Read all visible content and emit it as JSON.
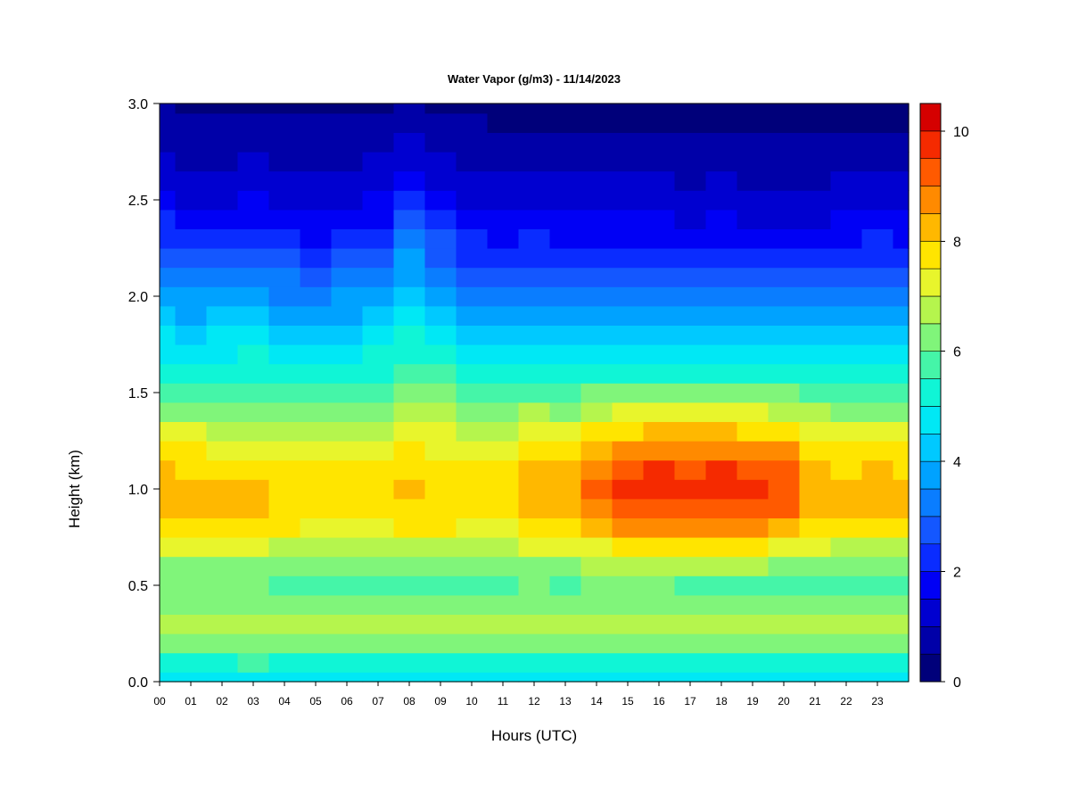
{
  "chart_data": {
    "type": "heatmap",
    "title": "Water Vapor (g/m3) - 11/14/2023",
    "xlabel": "Hours (UTC)",
    "ylabel": "Height (km)",
    "x_ticks": [
      "00",
      "01",
      "02",
      "03",
      "04",
      "05",
      "06",
      "07",
      "08",
      "09",
      "10",
      "11",
      "12",
      "13",
      "14",
      "15",
      "16",
      "17",
      "18",
      "19",
      "20",
      "21",
      "22",
      "23"
    ],
    "y_ticks": [
      "0.0",
      "0.5",
      "1.0",
      "1.5",
      "2.0",
      "2.5",
      "3.0"
    ],
    "colorbar_ticks": [
      "0",
      "2",
      "4",
      "6",
      "8",
      "10"
    ],
    "xlim": [
      0,
      24
    ],
    "ylim": [
      0,
      3
    ],
    "zlim": [
      0,
      10.5
    ],
    "colorbar_levels": [
      0,
      0.5,
      1,
      1.5,
      2,
      2.5,
      3,
      3.5,
      4,
      4.5,
      5,
      5.5,
      6,
      6.5,
      7,
      7.5,
      8,
      8.5,
      9,
      9.5,
      10,
      10.5
    ],
    "colormap": [
      "#00007a",
      "#0000a8",
      "#0000d0",
      "#0000f5",
      "#0a2cff",
      "#1457ff",
      "#0a7dff",
      "#00a2ff",
      "#00c9ff",
      "#00e8f5",
      "#10f5d6",
      "#45f5a8",
      "#80f57a",
      "#b5f54d",
      "#e8f52c",
      "#ffe500",
      "#ffb800",
      "#ff8a00",
      "#ff5a00",
      "#f52a00",
      "#d50000",
      "#a80000",
      "#780000"
    ],
    "heights_km": [
      0.0,
      0.1,
      0.2,
      0.3,
      0.4,
      0.5,
      0.6,
      0.7,
      0.8,
      0.9,
      1.0,
      1.1,
      1.2,
      1.3,
      1.4,
      1.5,
      1.6,
      1.7,
      1.8,
      1.9,
      2.0,
      2.1,
      2.2,
      2.3,
      2.4,
      2.5,
      2.6,
      2.7,
      2.8,
      2.9,
      3.0
    ],
    "hours_utc": [
      0,
      1,
      2,
      3,
      4,
      5,
      6,
      7,
      8,
      9,
      10,
      11,
      12,
      13,
      14,
      15,
      16,
      17,
      18,
      19,
      20,
      21,
      22,
      23,
      24
    ],
    "values_g_m3": [
      [
        4.8,
        5.4,
        6.2,
        6.8,
        6.3,
        6.1,
        6.4,
        7.1,
        7.7,
        8.1,
        8.3,
        8.0,
        7.6,
        7.0,
        6.4,
        5.9,
        5.3,
        4.9,
        4.5,
        4.1,
        3.7,
        3.3,
        2.8,
        2.4,
        2.0,
        1.6,
        1.3,
        1.0,
        0.8,
        0.6,
        0.5
      ],
      [
        4.8,
        5.4,
        6.2,
        6.7,
        6.2,
        6.0,
        6.3,
        7.0,
        7.6,
        8.0,
        8.1,
        7.9,
        7.5,
        7.0,
        6.3,
        5.8,
        5.2,
        4.8,
        4.3,
        3.9,
        3.5,
        3.0,
        2.5,
        2.1,
        1.7,
        1.4,
        1.1,
        0.9,
        0.7,
        0.5,
        0.4
      ],
      [
        4.7,
        5.4,
        6.2,
        6.8,
        6.2,
        6.0,
        6.3,
        7.0,
        7.6,
        8.0,
        8.0,
        7.8,
        7.4,
        6.9,
        6.3,
        5.8,
        5.3,
        4.9,
        4.5,
        4.0,
        3.5,
        3.0,
        2.5,
        2.1,
        1.7,
        1.4,
        1.1,
        0.9,
        0.7,
        0.5,
        0.4
      ],
      [
        4.7,
        5.5,
        6.2,
        6.7,
        6.2,
        6.0,
        6.2,
        7.0,
        7.6,
        8.0,
        8.1,
        7.8,
        7.4,
        6.9,
        6.4,
        5.9,
        5.4,
        5.0,
        4.6,
        4.1,
        3.7,
        3.2,
        2.7,
        2.3,
        1.9,
        1.6,
        1.3,
        1.0,
        0.8,
        0.6,
        0.4
      ],
      [
        4.7,
        5.4,
        6.1,
        6.6,
        6.1,
        5.9,
        6.2,
        6.9,
        7.5,
        7.9,
        7.9,
        7.7,
        7.3,
        6.8,
        6.2,
        5.7,
        5.2,
        4.8,
        4.3,
        3.9,
        3.4,
        3.0,
        2.5,
        2.1,
        1.7,
        1.4,
        1.1,
        0.9,
        0.7,
        0.5,
        0.4
      ],
      [
        4.6,
        5.3,
        6.0,
        6.5,
        6.0,
        5.8,
        6.1,
        6.8,
        7.4,
        7.7,
        7.8,
        7.6,
        7.2,
        6.7,
        6.1,
        5.6,
        5.1,
        4.7,
        4.3,
        3.8,
        3.3,
        2.8,
        2.3,
        1.9,
        1.6,
        1.3,
        1.0,
        0.8,
        0.6,
        0.5,
        0.4
      ],
      [
        4.6,
        5.3,
        6.0,
        6.5,
        6.0,
        5.8,
        6.1,
        6.8,
        7.4,
        7.7,
        7.8,
        7.6,
        7.2,
        6.7,
        6.2,
        5.7,
        5.2,
        4.8,
        4.4,
        3.9,
        3.5,
        3.0,
        2.5,
        2.0,
        1.7,
        1.4,
        1.1,
        0.9,
        0.7,
        0.5,
        0.4
      ],
      [
        4.7,
        5.3,
        6.0,
        6.5,
        6.0,
        5.8,
        6.1,
        6.8,
        7.4,
        7.8,
        7.9,
        7.7,
        7.3,
        6.8,
        6.3,
        5.9,
        5.4,
        5.0,
        4.6,
        4.2,
        3.7,
        3.2,
        2.7,
        2.3,
        1.9,
        1.6,
        1.3,
        1.0,
        0.8,
        0.6,
        0.4
      ],
      [
        4.7,
        5.3,
        6.1,
        6.6,
        6.1,
        5.9,
        6.2,
        6.9,
        7.5,
        7.9,
        8.0,
        7.8,
        7.5,
        7.1,
        6.6,
        6.2,
        5.8,
        5.4,
        5.0,
        4.7,
        4.3,
        3.9,
        3.5,
        3.1,
        2.6,
        2.1,
        1.7,
        1.3,
        1.0,
        0.7,
        0.5
      ],
      [
        4.7,
        5.3,
        6.1,
        6.6,
        6.1,
        5.9,
        6.2,
        6.9,
        7.5,
        7.8,
        7.9,
        7.7,
        7.4,
        7.0,
        6.5,
        6.0,
        5.5,
        5.1,
        4.7,
        4.3,
        3.9,
        3.4,
        2.9,
        2.5,
        2.0,
        1.7,
        1.3,
        1.0,
        0.8,
        0.6,
        0.4
      ],
      [
        4.6,
        5.3,
        6.0,
        6.5,
        6.0,
        5.8,
        6.1,
        6.8,
        7.4,
        7.7,
        7.8,
        7.6,
        7.2,
        6.7,
        6.2,
        5.7,
        5.2,
        4.8,
        4.3,
        3.9,
        3.4,
        2.9,
        2.4,
        2.0,
        1.6,
        1.3,
        1.0,
        0.8,
        0.6,
        0.5,
        0.3
      ],
      [
        4.6,
        5.3,
        6.0,
        6.5,
        6.0,
        5.8,
        6.1,
        6.8,
        7.4,
        7.7,
        7.8,
        7.6,
        7.2,
        6.7,
        6.1,
        5.6,
        5.1,
        4.7,
        4.3,
        3.8,
        3.3,
        2.8,
        2.3,
        1.9,
        1.5,
        1.2,
        1.0,
        0.8,
        0.6,
        0.4,
        0.3
      ],
      [
        4.7,
        5.4,
        6.1,
        6.7,
        6.2,
        6.0,
        6.4,
        7.2,
        7.9,
        8.3,
        8.4,
        8.2,
        7.8,
        7.2,
        6.5,
        5.9,
        5.3,
        4.8,
        4.3,
        3.9,
        3.4,
        2.9,
        2.4,
        2.0,
        1.6,
        1.3,
        1.0,
        0.8,
        0.6,
        0.4,
        0.3
      ],
      [
        4.7,
        5.4,
        6.1,
        6.6,
        6.1,
        5.9,
        6.3,
        7.1,
        7.8,
        8.2,
        8.3,
        8.1,
        7.7,
        7.1,
        6.4,
        5.8,
        5.2,
        4.7,
        4.3,
        3.8,
        3.3,
        2.8,
        2.3,
        1.9,
        1.5,
        1.2,
        1.0,
        0.8,
        0.6,
        0.4,
        0.3
      ],
      [
        4.7,
        5.4,
        6.1,
        6.7,
        6.2,
        6.0,
        6.5,
        7.4,
        8.2,
        8.8,
        9.0,
        8.8,
        8.3,
        7.6,
        6.8,
        6.0,
        5.3,
        4.8,
        4.3,
        3.8,
        3.3,
        2.8,
        2.3,
        1.9,
        1.5,
        1.2,
        1.0,
        0.8,
        0.6,
        0.4,
        0.3
      ],
      [
        4.7,
        5.4,
        6.1,
        6.7,
        6.2,
        6.0,
        6.6,
        7.6,
        8.5,
        9.2,
        9.5,
        9.3,
        8.7,
        7.9,
        7.0,
        6.1,
        5.4,
        4.8,
        4.3,
        3.8,
        3.3,
        2.8,
        2.3,
        1.9,
        1.5,
        1.2,
        1.0,
        0.8,
        0.6,
        0.4,
        0.3
      ],
      [
        4.7,
        5.4,
        6.2,
        6.7,
        6.2,
        6.0,
        6.6,
        7.7,
        8.7,
        9.4,
        9.7,
        9.5,
        8.9,
        8.1,
        7.1,
        6.2,
        5.4,
        4.8,
        4.3,
        3.8,
        3.3,
        2.8,
        2.3,
        1.9,
        1.5,
        1.2,
        1.0,
        0.8,
        0.6,
        0.4,
        0.3
      ],
      [
        4.6,
        5.3,
        6.1,
        6.6,
        6.1,
        5.9,
        6.5,
        7.6,
        8.6,
        9.3,
        9.6,
        9.4,
        8.8,
        8.0,
        7.0,
        6.1,
        5.3,
        4.7,
        4.2,
        3.7,
        3.2,
        2.7,
        2.2,
        1.8,
        1.4,
        1.1,
        0.9,
        0.7,
        0.5,
        0.4,
        0.3
      ],
      [
        4.5,
        5.3,
        6.1,
        6.6,
        6.1,
        5.9,
        6.5,
        7.6,
        8.6,
        9.4,
        9.7,
        9.5,
        8.9,
        8.1,
        7.1,
        6.2,
        5.4,
        4.8,
        4.3,
        3.8,
        3.3,
        2.8,
        2.3,
        1.9,
        1.5,
        1.2,
        1.0,
        0.8,
        0.6,
        0.4,
        0.3
      ],
      [
        4.6,
        5.3,
        6.1,
        6.6,
        6.1,
        5.9,
        6.5,
        7.5,
        8.5,
        9.2,
        9.5,
        9.3,
        8.7,
        7.9,
        7.0,
        6.1,
        5.3,
        4.7,
        4.2,
        3.7,
        3.2,
        2.7,
        2.2,
        1.8,
        1.4,
        1.1,
        0.9,
        0.7,
        0.5,
        0.4,
        0.3
      ],
      [
        4.6,
        5.3,
        6.1,
        6.6,
        6.1,
        5.9,
        6.4,
        7.4,
        8.3,
        9.0,
        9.2,
        9.0,
        8.5,
        7.8,
        6.9,
        6.0,
        5.3,
        4.7,
        4.2,
        3.7,
        3.2,
        2.7,
        2.2,
        1.8,
        1.4,
        1.1,
        0.9,
        0.7,
        0.5,
        0.4,
        0.3
      ],
      [
        4.6,
        5.3,
        6.0,
        6.5,
        6.0,
        5.8,
        6.2,
        7.1,
        7.8,
        8.3,
        8.4,
        8.2,
        7.8,
        7.2,
        6.5,
        5.8,
        5.2,
        4.7,
        4.2,
        3.7,
        3.2,
        2.7,
        2.2,
        1.8,
        1.4,
        1.1,
        0.9,
        0.7,
        0.5,
        0.4,
        0.3
      ],
      [
        4.6,
        5.3,
        6.0,
        6.5,
        6.0,
        5.8,
        6.1,
        6.9,
        7.6,
        8.0,
        8.1,
        7.9,
        7.5,
        7.0,
        6.3,
        5.7,
        5.1,
        4.6,
        4.2,
        3.7,
        3.2,
        2.7,
        2.3,
        1.9,
        1.5,
        1.2,
        1.0,
        0.8,
        0.6,
        0.4,
        0.3
      ],
      [
        4.6,
        5.3,
        6.0,
        6.5,
        6.0,
        5.8,
        6.1,
        6.9,
        7.6,
        8.1,
        8.2,
        8.0,
        7.6,
        7.0,
        6.4,
        5.8,
        5.2,
        4.8,
        4.3,
        3.9,
        3.4,
        2.9,
        2.4,
        2.0,
        1.6,
        1.3,
        1.0,
        0.8,
        0.6,
        0.4,
        0.3
      ],
      [
        4.6,
        5.3,
        6.0,
        6.5,
        6.0,
        5.8,
        6.1,
        6.9,
        7.6,
        8.0,
        8.1,
        7.9,
        7.5,
        7.0,
        6.3,
        5.7,
        5.1,
        4.7,
        4.2,
        3.8,
        3.3,
        2.8,
        2.3,
        1.9,
        1.5,
        1.2,
        1.0,
        0.8,
        0.6,
        0.4,
        0.3
      ]
    ]
  }
}
